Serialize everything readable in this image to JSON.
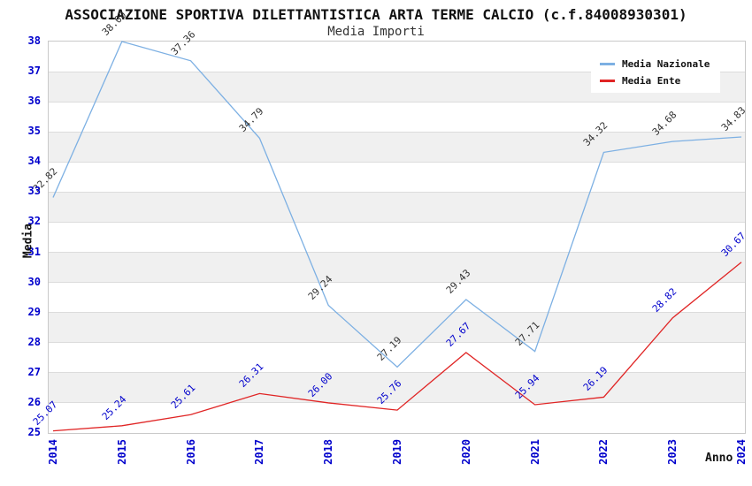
{
  "chart_data": {
    "type": "line",
    "title": "ASSOCIAZIONE SPORTIVA DILETTANTISTICA ARTA TERME CALCIO (c.f.84008930301)",
    "subtitle": "Media Importi",
    "xlabel": "Anno",
    "ylabel": "Media",
    "x": [
      "2014",
      "2015",
      "2016",
      "2017",
      "2018",
      "2019",
      "2020",
      "2021",
      "2022",
      "2023",
      "2024"
    ],
    "series": [
      {
        "name": "Media Nazionale",
        "color": "#7DB0E3",
        "label_color": "#333333",
        "values": [
          32.82,
          38.0,
          37.36,
          34.79,
          29.24,
          27.19,
          29.43,
          27.71,
          34.32,
          34.68,
          34.83
        ]
      },
      {
        "name": "Media Ente",
        "color": "#E02525",
        "label_color": "#0000CC",
        "values": [
          25.07,
          25.24,
          25.61,
          26.31,
          26.0,
          25.76,
          27.67,
          25.94,
          26.19,
          28.82,
          30.67
        ]
      }
    ],
    "ylim": [
      25,
      38
    ],
    "y_tick_step": 1,
    "grid": "horizontal-bands",
    "legend_position": "top-right",
    "style": {
      "band_fill": "#F0F0F0",
      "grid_color": "#DCDCDC",
      "plot_border": "#C9C9C9",
      "tick_color": "#0000CC",
      "title_color": "#111111"
    }
  }
}
